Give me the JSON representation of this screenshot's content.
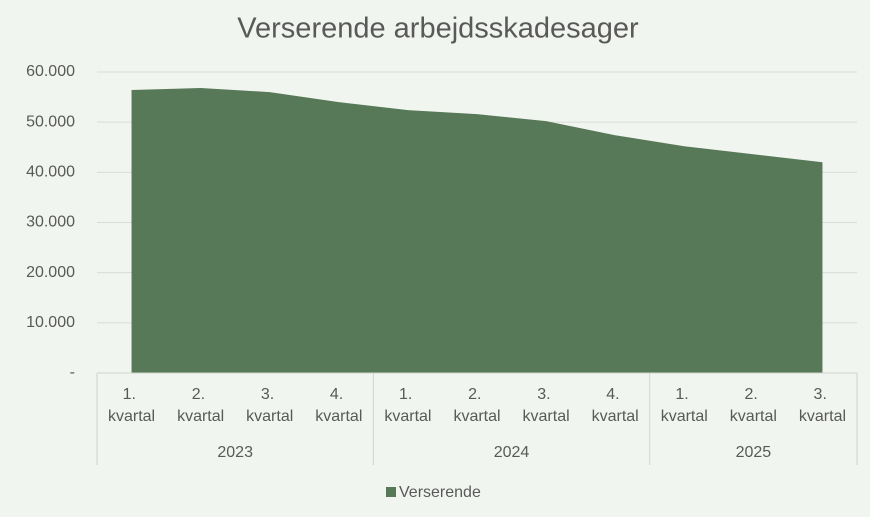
{
  "chart_data": {
    "type": "area",
    "title": "Verserende arbejdsskadesager",
    "groups": [
      {
        "name": "2023",
        "categories": [
          "1. kvartal",
          "2. kvartal",
          "3. kvartal",
          "4. kvartal"
        ]
      },
      {
        "name": "2024",
        "categories": [
          "1. kvartal",
          "2. kvartal",
          "3. kvartal",
          "4. kvartal"
        ]
      },
      {
        "name": "2025",
        "categories": [
          "1. kvartal",
          "2. kvartal",
          "3. kvartal"
        ]
      }
    ],
    "series": [
      {
        "name": "Verserende",
        "color": "#587957",
        "values": [
          56400,
          56800,
          56000,
          54000,
          52400,
          51600,
          50200,
          47400,
          45200,
          43600,
          42000
        ]
      }
    ],
    "ylim": [
      0,
      60000
    ],
    "yticks": [
      {
        "value": 0,
        "label": "-"
      },
      {
        "value": 10000,
        "label": "10.000"
      },
      {
        "value": 20000,
        "label": "20.000"
      },
      {
        "value": 30000,
        "label": "30.000"
      },
      {
        "value": 40000,
        "label": "40.000"
      },
      {
        "value": 50000,
        "label": "50.000"
      },
      {
        "value": 60000,
        "label": "60.000"
      }
    ],
    "grid": true,
    "legend": "bottom"
  }
}
